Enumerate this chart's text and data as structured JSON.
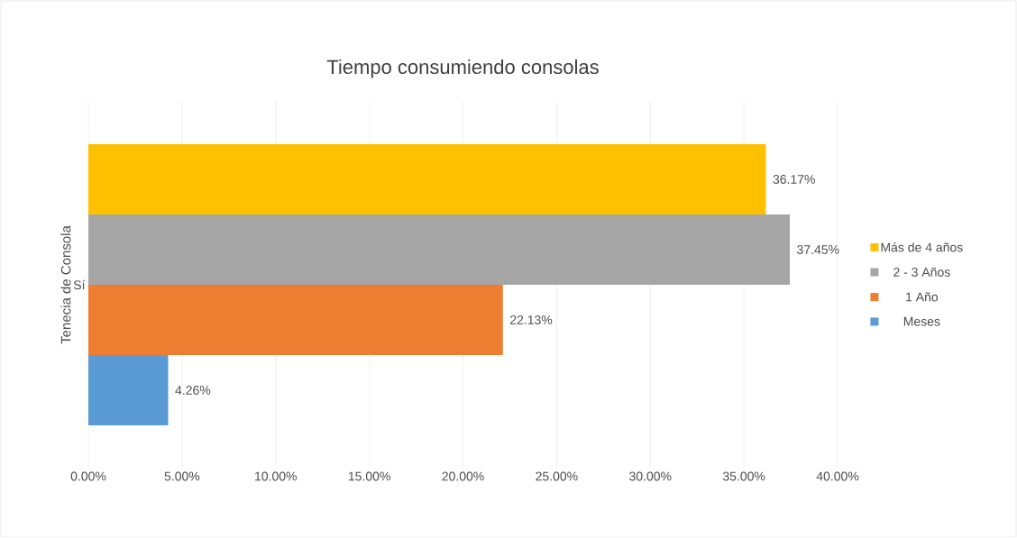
{
  "chart_data": {
    "type": "bar",
    "orientation": "horizontal",
    "title": "Tiempo consumiendo consolas",
    "ylabel": "Tenecia de Consola",
    "categories": [
      "Sí"
    ],
    "series": [
      {
        "name": "Meses",
        "color": "#5b9bd5",
        "values": [
          4.26
        ],
        "value_labels": [
          "4.26%"
        ]
      },
      {
        "name": "1 Año",
        "color": "#ed7d31",
        "values": [
          22.13
        ],
        "value_labels": [
          "22.13%"
        ]
      },
      {
        "name": "2 - 3 Años",
        "color": "#a5a5a5",
        "values": [
          37.45
        ],
        "value_labels": [
          "37.45%"
        ]
      },
      {
        "name": "Más de 4 años",
        "color": "#ffc000",
        "values": [
          36.17
        ],
        "value_labels": [
          "36.17%"
        ]
      }
    ],
    "xlim": [
      0,
      40
    ],
    "xticks": [
      {
        "value": 0,
        "label": "0.00%"
      },
      {
        "value": 5,
        "label": "5.00%"
      },
      {
        "value": 10,
        "label": "10.00%"
      },
      {
        "value": 15,
        "label": "15.00%"
      },
      {
        "value": 20,
        "label": "20.00%"
      },
      {
        "value": 25,
        "label": "25.00%"
      },
      {
        "value": 30,
        "label": "30.00%"
      },
      {
        "value": 35,
        "label": "35.00%"
      },
      {
        "value": 40,
        "label": "40.00%"
      }
    ],
    "grid": "x",
    "legend": "right"
  }
}
